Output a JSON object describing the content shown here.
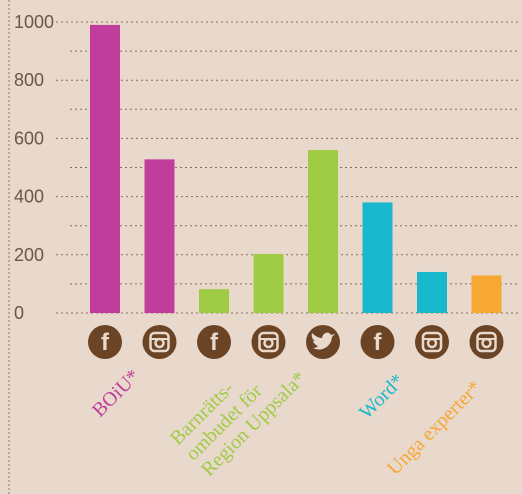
{
  "chart_data": {
    "type": "bar",
    "title": "",
    "xlabel": "",
    "ylabel": "",
    "ylim": [
      0,
      1000
    ],
    "yticks": [
      0,
      200,
      400,
      600,
      800,
      1000
    ],
    "grid": "dotted horizontal",
    "bars": [
      {
        "platform": "facebook",
        "platform_icon": "facebook-icon",
        "group": "BOiU*",
        "value": 990,
        "color": "#c13d9b"
      },
      {
        "platform": "instagram",
        "platform_icon": "instagram-icon",
        "group": "BOiU*",
        "value": 528,
        "color": "#c13d9b"
      },
      {
        "platform": "facebook",
        "platform_icon": "facebook-icon",
        "group": "Barnrätts-ombudet för Region Uppsala*",
        "value": 82,
        "color": "#9fcb45"
      },
      {
        "platform": "instagram",
        "platform_icon": "instagram-icon",
        "group": "Barnrätts-ombudet för Region Uppsala*",
        "value": 203,
        "color": "#9fcb45"
      },
      {
        "platform": "twitter",
        "platform_icon": "twitter-icon",
        "group": "Barnrätts-ombudet för Region Uppsala*",
        "value": 560,
        "color": "#9fcb45"
      },
      {
        "platform": "facebook",
        "platform_icon": "facebook-icon",
        "group": "Word*",
        "value": 380,
        "color": "#1ab8cc"
      },
      {
        "platform": "instagram",
        "platform_icon": "instagram-icon",
        "group": "Word*",
        "value": 141,
        "color": "#1ab8cc"
      },
      {
        "platform": "instagram",
        "platform_icon": "instagram-icon",
        "group": "Unga experter*",
        "value": 129,
        "color": "#f6a832"
      }
    ],
    "group_labels": [
      {
        "lines": [
          "BOiU*"
        ],
        "color": "#c13d9b"
      },
      {
        "lines": [
          "Barnrätts-",
          "ombudet för",
          "Region Uppsala*"
        ],
        "color": "#9fcb45"
      },
      {
        "lines": [
          "Word*"
        ],
        "color": "#1ab8cc"
      },
      {
        "lines": [
          "Unga experter*"
        ],
        "color": "#f6a832"
      }
    ],
    "colors": {
      "background": "#e8d9cc",
      "grid": "#6e5545",
      "tick_text": "#6e5545",
      "icon_circle": "#6b4426"
    }
  }
}
